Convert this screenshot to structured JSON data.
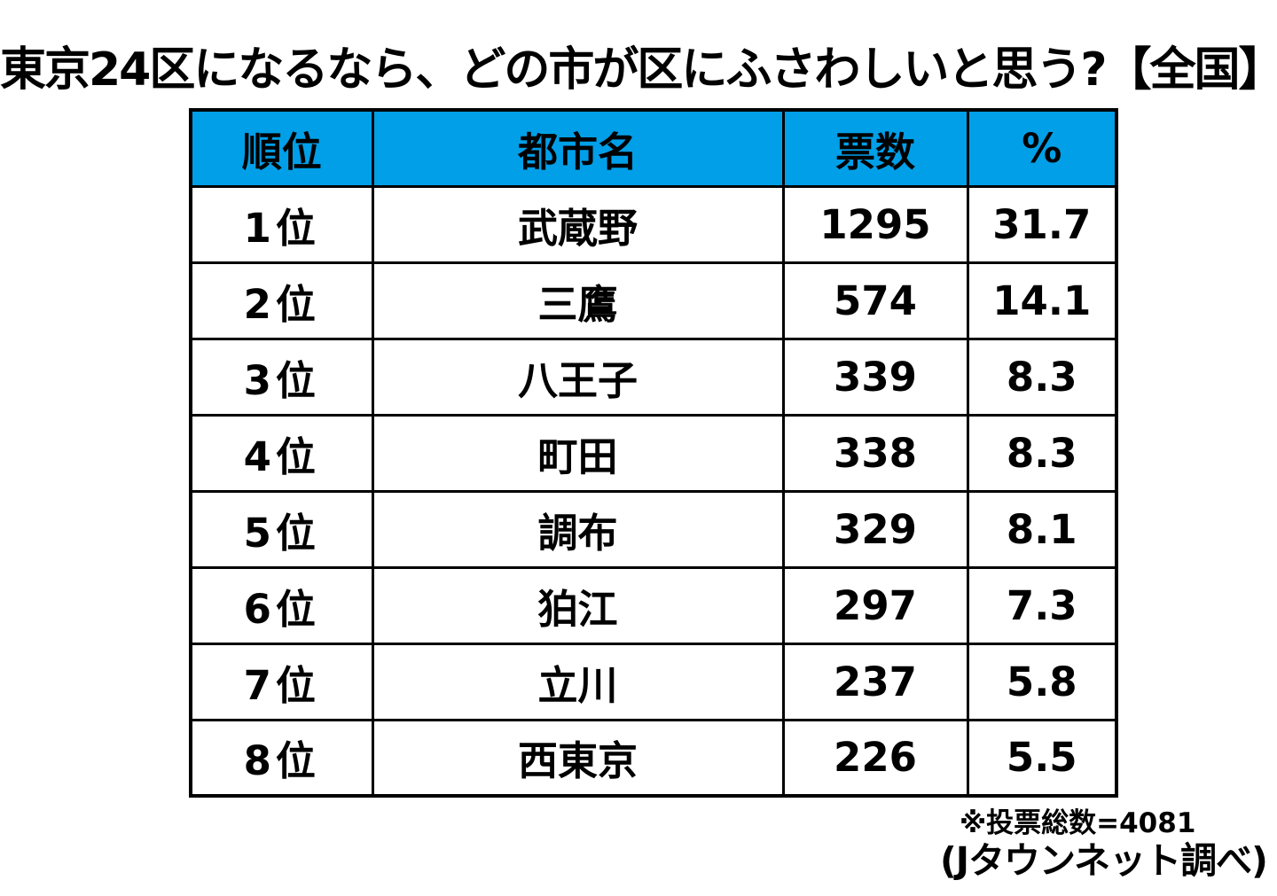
{
  "title": "東京24区になるなら、どの市が区にふさわしいと思う?【全国】",
  "table": {
    "headers": [
      "順位",
      "都市名",
      "票数",
      "%"
    ],
    "rows": [
      {
        "rank": "1位",
        "city": "武蔵野",
        "votes": "1295",
        "percent": "31.7"
      },
      {
        "rank": "2位",
        "city": "三鷹",
        "votes": "574",
        "percent": "14.1"
      },
      {
        "rank": "3位",
        "city": "八王子",
        "votes": "339",
        "percent": "8.3"
      },
      {
        "rank": "4位",
        "city": "町田",
        "votes": "338",
        "percent": "8.3"
      },
      {
        "rank": "5位",
        "city": "調布",
        "votes": "329",
        "percent": "8.1"
      },
      {
        "rank": "6位",
        "city": "狛江",
        "votes": "297",
        "percent": "7.3"
      },
      {
        "rank": "7位",
        "city": "立川",
        "votes": "237",
        "percent": "5.8"
      },
      {
        "rank": "8位",
        "city": "西東京",
        "votes": "226",
        "percent": "5.5"
      }
    ]
  },
  "footer": {
    "total_note": "※投票総数=4081",
    "source": "(Jタウンネット調べ)"
  },
  "colors": {
    "header_bg": "#009FE8",
    "border": "#000000",
    "text": "#000000"
  },
  "chart_data": {
    "type": "table",
    "title": "東京24区になるなら、どの市が区にふさわしいと思う?【全国】",
    "columns": [
      "順位",
      "都市名",
      "票数",
      "%"
    ],
    "categories": [
      "武蔵野",
      "三鷹",
      "八王子",
      "町田",
      "調布",
      "狛江",
      "立川",
      "西東京"
    ],
    "series": [
      {
        "name": "票数",
        "values": [
          1295,
          574,
          339,
          338,
          329,
          297,
          237,
          226
        ]
      },
      {
        "name": "%",
        "values": [
          31.7,
          14.1,
          8.3,
          8.3,
          8.1,
          7.3,
          5.8,
          5.5
        ]
      }
    ],
    "total_votes": 4081,
    "source": "Jタウンネット調べ"
  }
}
